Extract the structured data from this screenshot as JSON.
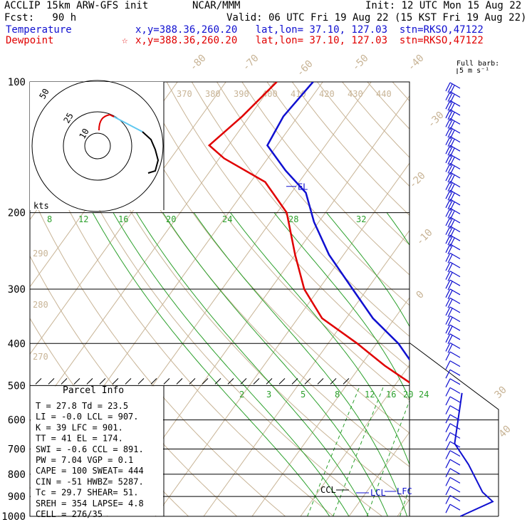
{
  "header": {
    "model": "ACCLIP 15km ARW-GFS init",
    "org": "NCAR/MMM",
    "init": "Init: 12 UTC Mon 15 Aug 22",
    "fcst": "Fcst:   90 h",
    "valid": "Valid: 06 UTC Fri 19 Aug 22 (15 KST Fri 19 Aug 22)",
    "temp_label": "Temperature",
    "temp_info": "x,y=388.36,260.20   lat,lon= 37.10, 127.03  stn=RKSO,47122",
    "dew_label": "Dewpoint",
    "dew_info": "x,y=388.36,260.20   lat,lon= 37.10, 127.03  stn=RKSO,47122",
    "star": "☆",
    "full_barb": "Full barb:",
    "full_barb_units": "5 m s⁻¹"
  },
  "colors": {
    "temperature": "#1010d0",
    "dewpoint": "#e00000",
    "dry_adiabat": "#c8b496",
    "isotherm": "#c8b496",
    "moist_adiabat": "#2ca02c",
    "mixing_ratio": "#2ca02c",
    "hodograph_low": "#000000",
    "hodograph_high": "#60c8f0"
  },
  "parcel_info": {
    "title": "Parcel Info",
    "rows": [
      "T  =   27.8 Td =  23.5",
      "LI =   -0.0 LCL =  907.",
      "K  =     39 LFC =  901.",
      "TT =     41 EL  =  174.",
      "SWI =  -0.6 CCL =  891.",
      "PW =   7.04 VGP =   0.1",
      "CAPE =  100 SWEAT=  444",
      "CIN =   -51 HWBZ= 5287.",
      "Tc =   29.7 SHEAR=  51.",
      "SREH =  354 LAPSE=  4.8",
      "CELL = 276/35"
    ]
  },
  "hodograph": {
    "units_label": "kts",
    "ring_labels": [
      "50",
      "25",
      "10"
    ]
  },
  "chart_data": {
    "type": "line",
    "title": "",
    "pressure_axis_ticks": [
      "100",
      "200",
      "300",
      "400",
      "500",
      "600",
      "700",
      "800",
      "900",
      "1000"
    ],
    "pressure_levels_hpa": [
      100,
      200,
      300,
      400,
      500,
      600,
      700,
      800,
      900,
      1000
    ],
    "pressure_range_hpa": [
      1000,
      100
    ],
    "log_pressure_axis": true,
    "dry_adiabat_labels": [
      "370",
      "380",
      "390",
      "400",
      "410",
      "420",
      "430",
      "440",
      "290",
      "280",
      "270"
    ],
    "isotherm_labels": [
      "-80",
      "-70",
      "-60",
      "-50",
      "-40",
      "-30",
      "-20",
      "-10",
      "0",
      "30",
      "40"
    ],
    "moist_adiabat_labels": [
      "8",
      "12",
      "16",
      "20",
      "24",
      "28",
      "32"
    ],
    "mixing_ratio_labels": [
      "2",
      "3",
      "5",
      "8",
      "12",
      "16",
      "20",
      "24"
    ],
    "annotations": [
      "EL",
      "CCL",
      "LCL",
      "LFC"
    ],
    "series": [
      {
        "name": "Temperature",
        "pressure_hpa": [
          1000,
          960,
          930,
          905,
          880,
          850,
          800,
          750,
          700,
          650,
          600,
          550,
          500,
          450,
          400,
          350,
          300,
          250,
          210,
          180,
          160,
          140,
          120,
          100
        ],
        "temperature_c": [
          22.0,
          25.5,
          28.0,
          27.6,
          25.5,
          24.5,
          20.8,
          17.6,
          13.5,
          11.0,
          7.5,
          3.0,
          -2.0,
          -9.0,
          -15.5,
          -24.5,
          -33.0,
          -43.0,
          -51.0,
          -57.0,
          -64.5,
          -72.0,
          -73.0,
          -72.0
        ]
      },
      {
        "name": "Dewpoint",
        "pressure_hpa": [
          1000,
          960,
          930,
          905,
          880,
          850,
          800,
          750,
          700,
          650,
          600,
          550,
          500,
          450,
          400,
          350,
          300,
          250,
          200,
          170,
          150,
          140,
          120,
          100
        ],
        "temperature_c": [
          21.0,
          23.0,
          23.5,
          23.0,
          22.5,
          21.0,
          18.0,
          14.0,
          9.5,
          6.0,
          3.0,
          0.0,
          -6.0,
          -15.0,
          -24.0,
          -35.0,
          -43.0,
          -50.0,
          -58.0,
          -67.0,
          -79.0,
          -84.0,
          -81.5,
          -79.5
        ]
      }
    ]
  }
}
